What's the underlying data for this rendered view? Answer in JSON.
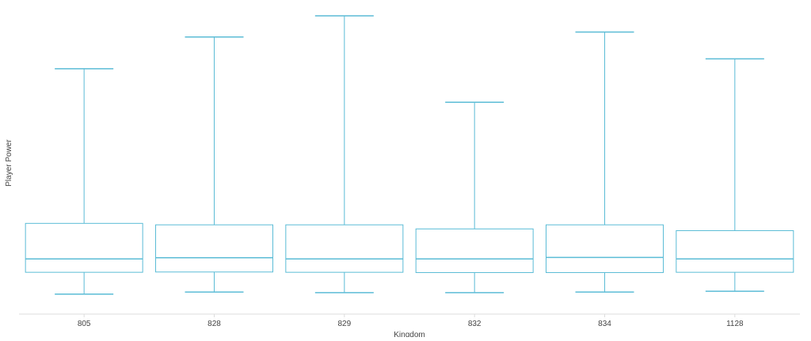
{
  "chart_data": {
    "type": "boxplot",
    "title": "",
    "xlabel": "Kingdom",
    "ylabel": "Player Power",
    "ylim": [
      0,
      100
    ],
    "grid": false,
    "color": "#5bbcd6",
    "axis_color": "#dddddd",
    "categories": [
      "805",
      "828",
      "829",
      "832",
      "834",
      "1128"
    ],
    "boxes": [
      {
        "category": "805",
        "min": 3.6,
        "q1": 11.1,
        "median": 15.7,
        "q3": 27.9,
        "max": 81.0
      },
      {
        "category": "828",
        "min": 4.3,
        "q1": 11.2,
        "median": 16.1,
        "q3": 27.4,
        "max": 91.9
      },
      {
        "category": "829",
        "min": 4.1,
        "q1": 11.1,
        "median": 15.7,
        "q3": 27.4,
        "max": 99.2
      },
      {
        "category": "832",
        "min": 4.1,
        "q1": 11.0,
        "median": 15.7,
        "q3": 26.0,
        "max": 69.5
      },
      {
        "category": "834",
        "min": 4.3,
        "q1": 11.0,
        "median": 16.2,
        "q3": 27.4,
        "max": 93.6
      },
      {
        "category": "1128",
        "min": 4.6,
        "q1": 11.1,
        "median": 15.7,
        "q3": 25.4,
        "max": 84.4
      }
    ]
  }
}
